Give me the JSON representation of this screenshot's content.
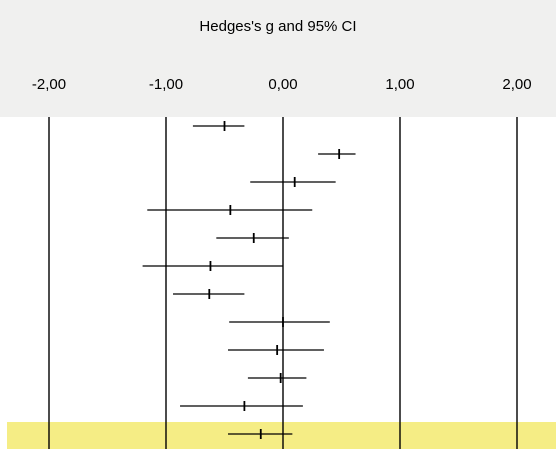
{
  "chart_data": {
    "type": "forest",
    "title": "Hedges's g and 95% CI",
    "xlabel": "",
    "ylabel": "",
    "xlim": [
      -2,
      2
    ],
    "x_ticks": [
      -2,
      -1,
      0,
      1,
      2
    ],
    "tick_labels": [
      "-2,00",
      "-1,00",
      "0,00",
      "1,00",
      "2,00"
    ],
    "grid": "vertical lines at each tick",
    "studies": [
      {
        "g": -0.5,
        "lower": -0.77,
        "upper": -0.33
      },
      {
        "g": 0.48,
        "lower": 0.3,
        "upper": 0.62
      },
      {
        "g": 0.1,
        "lower": -0.28,
        "upper": 0.45
      },
      {
        "g": -0.45,
        "lower": -1.16,
        "upper": 0.25
      },
      {
        "g": -0.25,
        "lower": -0.57,
        "upper": 0.05
      },
      {
        "g": -0.62,
        "lower": -1.2,
        "upper": 0.0
      },
      {
        "g": -0.63,
        "lower": -0.94,
        "upper": -0.33
      },
      {
        "g": 0.0,
        "lower": -0.46,
        "upper": 0.4
      },
      {
        "g": -0.05,
        "lower": -0.47,
        "upper": 0.35
      },
      {
        "g": -0.02,
        "lower": -0.3,
        "upper": 0.2
      },
      {
        "g": -0.33,
        "lower": -0.88,
        "upper": 0.17
      }
    ],
    "summary": {
      "g": -0.19,
      "lower": -0.47,
      "upper": 0.08
    },
    "colors": {
      "header_background": "#f0f0ef",
      "summary_highlight": "#f5ed85",
      "lines": "#000000"
    }
  }
}
